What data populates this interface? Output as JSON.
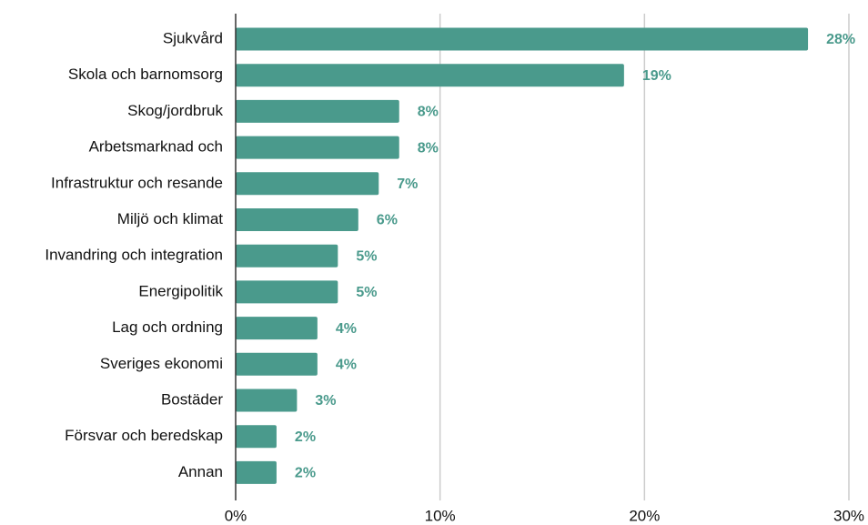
{
  "chart_data": {
    "type": "bar",
    "orientation": "horizontal",
    "categories": [
      "Sjukvård",
      "Skola och barnomsorg",
      "Skog/jordbruk",
      "Arbetsmarknad och",
      "Infrastruktur och resande",
      "Miljö och klimat",
      "Invandring och integration",
      "Energipolitik",
      "Lag och ordning",
      "Sveriges ekonomi",
      "Bostäder",
      "Försvar och beredskap",
      "Annan"
    ],
    "values": [
      28,
      19,
      8,
      8,
      7,
      6,
      5,
      5,
      4,
      4,
      3,
      2,
      2
    ],
    "value_labels": [
      "28%",
      "19%",
      "8%",
      "8%",
      "7%",
      "6%",
      "5%",
      "5%",
      "4%",
      "4%",
      "3%",
      "2%",
      "2%"
    ],
    "color": "#4a9a8c",
    "xlim": [
      0,
      30
    ],
    "xticks": [
      {
        "value": 0,
        "label": "0%"
      },
      {
        "value": 10,
        "label": "10%"
      },
      {
        "value": 20,
        "label": "20%"
      },
      {
        "value": 30,
        "label": "30%"
      }
    ],
    "grid": true
  }
}
